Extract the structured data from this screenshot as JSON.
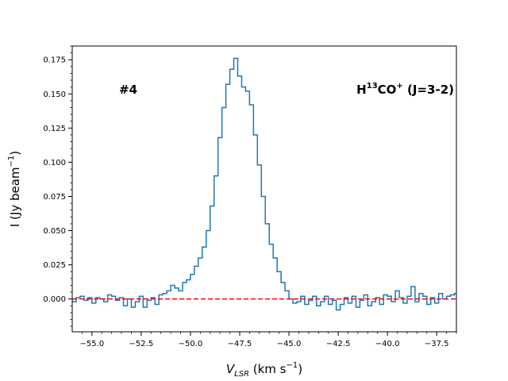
{
  "chart_data": {
    "type": "line",
    "style": "step",
    "title": "",
    "xlabel": {
      "main": "V",
      "sub": "LSR",
      "rest": " (km s",
      "sup": "−1",
      "end": ")"
    },
    "ylabel": {
      "main": "I (Jy beam",
      "sup": "−1",
      "end": ")"
    },
    "xlim": [
      -56.0,
      -36.5
    ],
    "ylim": [
      -0.024,
      0.185
    ],
    "xticks": [
      -55.0,
      -52.5,
      -50.0,
      -47.5,
      -45.0,
      -42.5,
      -40.0,
      -37.5
    ],
    "xtick_labels": [
      "−55.0",
      "−52.5",
      "−50.0",
      "−47.5",
      "−45.0",
      "−42.5",
      "−40.0",
      "−37.5"
    ],
    "yticks": [
      0.0,
      0.025,
      0.05,
      0.075,
      0.1,
      0.125,
      0.15,
      0.175
    ],
    "ytick_labels": [
      "0.000",
      "0.025",
      "0.050",
      "0.075",
      "0.100",
      "0.125",
      "0.150",
      "0.175"
    ],
    "grid": false,
    "annotations": {
      "left": "#4",
      "right": {
        "main": "H",
        "sup1": "13",
        "mid": "CO",
        "sup2": "+",
        "end": " (J=3-2)"
      }
    },
    "baseline": {
      "y": 0.0,
      "color": "#ff0000",
      "style": "dashed"
    },
    "series": [
      {
        "color": "#1f77b4",
        "x": [
          -56.0,
          -55.8,
          -55.6,
          -55.4,
          -55.2,
          -55.0,
          -54.8,
          -54.6,
          -54.4,
          -54.2,
          -54.0,
          -53.8,
          -53.6,
          -53.4,
          -53.2,
          -53.0,
          -52.8,
          -52.6,
          -52.4,
          -52.2,
          -52.0,
          -51.8,
          -51.6,
          -51.4,
          -51.2,
          -51.0,
          -50.8,
          -50.6,
          -50.4,
          -50.2,
          -50.0,
          -49.8,
          -49.6,
          -49.4,
          -49.2,
          -49.0,
          -48.8,
          -48.6,
          -48.4,
          -48.2,
          -48.0,
          -47.8,
          -47.6,
          -47.4,
          -47.2,
          -47.0,
          -46.8,
          -46.6,
          -46.4,
          -46.2,
          -46.0,
          -45.8,
          -45.6,
          -45.4,
          -45.2,
          -45.0,
          -44.8,
          -44.6,
          -44.4,
          -44.2,
          -44.0,
          -43.8,
          -43.6,
          -43.4,
          -43.2,
          -43.0,
          -42.8,
          -42.6,
          -42.4,
          -42.2,
          -42.0,
          -41.8,
          -41.6,
          -41.4,
          -41.2,
          -41.0,
          -40.8,
          -40.6,
          -40.4,
          -40.2,
          -40.0,
          -39.8,
          -39.6,
          -39.4,
          -39.2,
          -39.0,
          -38.8,
          -38.6,
          -38.4,
          -38.2,
          -38.0,
          -37.8,
          -37.6,
          -37.4,
          -37.2,
          -37.0,
          -36.8,
          -36.6
        ],
        "y": [
          -0.002,
          0.001,
          0.002,
          -0.001,
          0.001,
          -0.003,
          0.001,
          0.0,
          -0.002,
          0.003,
          0.002,
          -0.001,
          0.001,
          -0.005,
          0.0,
          -0.006,
          -0.002,
          0.002,
          -0.006,
          -0.001,
          0.001,
          -0.004,
          0.003,
          0.004,
          0.006,
          0.01,
          0.008,
          0.006,
          0.012,
          0.014,
          0.018,
          0.024,
          0.03,
          0.038,
          0.05,
          0.068,
          0.09,
          0.118,
          0.14,
          0.157,
          0.168,
          0.176,
          0.163,
          0.155,
          0.152,
          0.142,
          0.12,
          0.098,
          0.075,
          0.055,
          0.04,
          0.03,
          0.02,
          0.012,
          0.006,
          0.0,
          -0.003,
          -0.002,
          0.002,
          -0.004,
          -0.001,
          0.002,
          -0.005,
          -0.002,
          0.002,
          -0.004,
          -0.001,
          -0.008,
          -0.004,
          0.001,
          -0.003,
          0.002,
          -0.006,
          -0.001,
          0.003,
          -0.005,
          -0.002,
          0.001,
          -0.004,
          0.003,
          0.002,
          -0.002,
          0.006,
          0.001,
          -0.003,
          0.002,
          0.009,
          -0.002,
          0.004,
          0.002,
          -0.004,
          0.001,
          -0.003,
          0.004,
          0.0,
          0.002,
          0.003,
          0.004
        ]
      }
    ]
  }
}
